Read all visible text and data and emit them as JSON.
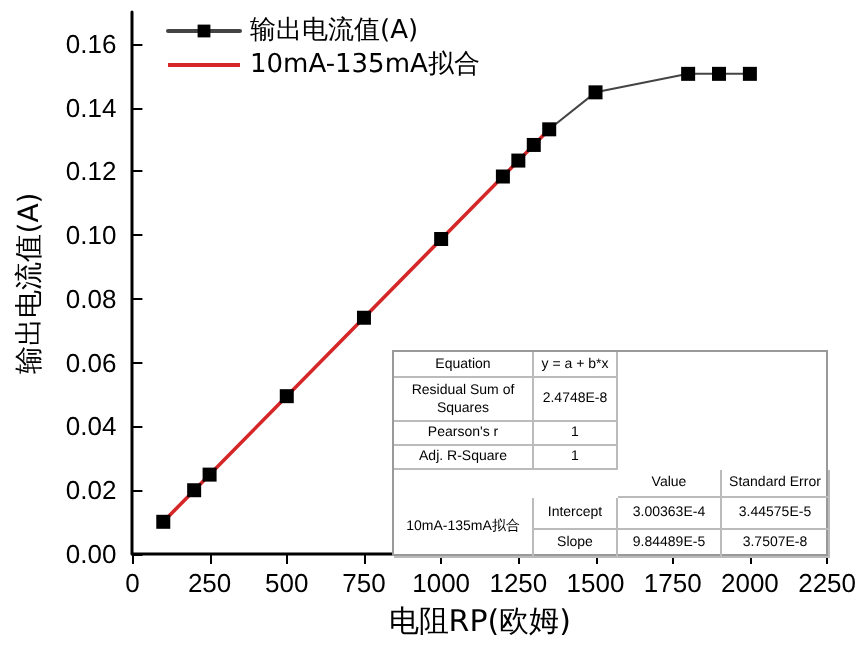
{
  "chart_data": {
    "type": "line",
    "xlabel": "电阻RP(欧姆)",
    "ylabel": "输出电流值(A)",
    "xlim": [
      0,
      2250
    ],
    "xticks": [
      0,
      250,
      500,
      750,
      1000,
      1250,
      1500,
      1750,
      2000,
      2250
    ],
    "ylim": [
      0,
      0.17
    ],
    "yticks": [
      {
        "value": 0,
        "label": "0.00"
      },
      {
        "value": 0.02,
        "label": "0.02"
      },
      {
        "value": 0.04,
        "label": "0.04"
      },
      {
        "value": 0.06,
        "label": "0.06"
      },
      {
        "value": 0.08,
        "label": "0.08"
      },
      {
        "value": 0.1,
        "label": "0.10"
      },
      {
        "value": 0.12,
        "label": "0.12"
      },
      {
        "value": 0.14,
        "label": "0.14"
      },
      {
        "value": 0.16,
        "label": "0.16"
      }
    ],
    "grid": false,
    "legend": "top left",
    "series": [
      {
        "name": "输出电流值(A)",
        "color": "#000000",
        "marker": "square",
        "x": [
          100,
          200,
          250,
          500,
          750,
          1000,
          1200,
          1250,
          1300,
          1350,
          1500,
          1800,
          1900,
          2000
        ],
        "values": [
          0.0101,
          0.02,
          0.0249,
          0.0495,
          0.0741,
          0.0988,
          0.1184,
          0.1234,
          0.1283,
          0.1332,
          0.1448,
          0.1506,
          0.1506,
          0.1506
        ]
      },
      {
        "name": "10mA-135mA拟合",
        "color": "#d62728",
        "marker": "none",
        "x": [
          100,
          1350
        ],
        "values": [
          0.0101,
          0.1332
        ]
      }
    ],
    "annotations": [
      "Equation",
      "y = a + b*x",
      "Residual Sum of Squares",
      "2.4748E-8",
      "Pearson's r",
      "1",
      "Adj. R-Square",
      "1",
      "Value",
      "Standard Error",
      "10mA-135mA拟合",
      "Intercept",
      "3.00363E-4",
      "3.44575E-5",
      "Slope",
      "9.84489E-5",
      "3.7507E-8"
    ]
  }
}
